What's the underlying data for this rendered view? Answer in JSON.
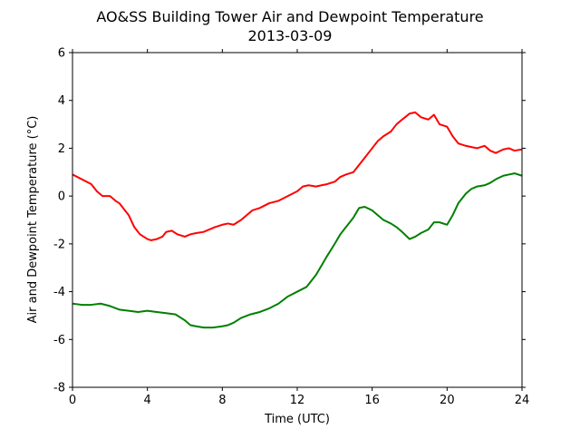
{
  "chart_data": {
    "type": "line",
    "title": "AO&SS Building Tower Air and Dewpoint Temperature",
    "subtitle": "2013-03-09",
    "xlabel": "Time (UTC)",
    "ylabel": "Air and Dewpoint Temperature (°C)",
    "xlim": [
      0,
      24
    ],
    "ylim": [
      -8,
      6
    ],
    "xticks": [
      "0",
      "4",
      "8",
      "12",
      "16",
      "20",
      "24"
    ],
    "yticks": [
      "6",
      "4",
      "2",
      "0",
      "-2",
      "-4",
      "-6",
      "-8"
    ],
    "grid": false,
    "legend": "none",
    "series": [
      {
        "color": "#ff0000",
        "x": [
          0,
          0.5,
          1,
          1.3,
          1.6,
          2,
          2.3,
          2.5,
          3,
          3.3,
          3.6,
          4,
          4.2,
          4.5,
          4.8,
          5,
          5.3,
          5.6,
          6,
          6.3,
          6.6,
          7,
          7.3,
          7.6,
          8,
          8.3,
          8.6,
          9,
          9.3,
          9.6,
          10,
          10.5,
          11,
          11.5,
          12,
          12.3,
          12.6,
          13,
          13.3,
          13.6,
          14,
          14.3,
          14.6,
          15,
          15.3,
          15.6,
          16,
          16.3,
          16.6,
          17,
          17.3,
          17.6,
          18,
          18.3,
          18.6,
          19,
          19.3,
          19.6,
          20,
          20.3,
          20.6,
          21,
          21.3,
          21.6,
          22,
          22.3,
          22.6,
          23,
          23.3,
          23.6,
          24
        ],
        "y": [
          0.9,
          0.7,
          0.5,
          0.2,
          0.0,
          0.0,
          -0.2,
          -0.3,
          -0.8,
          -1.3,
          -1.6,
          -1.8,
          -1.85,
          -1.8,
          -1.7,
          -1.5,
          -1.45,
          -1.6,
          -1.7,
          -1.6,
          -1.55,
          -1.5,
          -1.4,
          -1.3,
          -1.2,
          -1.15,
          -1.2,
          -1.0,
          -0.8,
          -0.6,
          -0.5,
          -0.3,
          -0.2,
          0.0,
          0.2,
          0.4,
          0.45,
          0.4,
          0.45,
          0.5,
          0.6,
          0.8,
          0.9,
          1.0,
          1.3,
          1.6,
          2.0,
          2.3,
          2.5,
          2.7,
          3.0,
          3.2,
          3.45,
          3.5,
          3.3,
          3.2,
          3.4,
          3.0,
          2.9,
          2.5,
          2.2,
          2.1,
          2.05,
          2.0,
          2.1,
          1.9,
          1.8,
          1.95,
          2.0,
          1.9,
          1.95
        ]
      },
      {
        "color": "#008000",
        "x": [
          0,
          0.5,
          1,
          1.5,
          2,
          2.5,
          3,
          3.5,
          4,
          4.5,
          5,
          5.5,
          6,
          6.3,
          6.6,
          7,
          7.5,
          8,
          8.3,
          8.6,
          9,
          9.5,
          10,
          10.5,
          11,
          11.5,
          12,
          12.5,
          13,
          13.3,
          13.6,
          14,
          14.3,
          14.6,
          15,
          15.3,
          15.6,
          16,
          16.3,
          16.6,
          17,
          17.3,
          17.6,
          18,
          18.3,
          18.6,
          19,
          19.3,
          19.6,
          20,
          20.3,
          20.6,
          21,
          21.3,
          21.6,
          22,
          22.3,
          22.6,
          23,
          23.3,
          23.6,
          24
        ],
        "y": [
          -4.5,
          -4.55,
          -4.55,
          -4.5,
          -4.6,
          -4.75,
          -4.8,
          -4.85,
          -4.8,
          -4.85,
          -4.9,
          -4.95,
          -5.2,
          -5.4,
          -5.45,
          -5.5,
          -5.5,
          -5.45,
          -5.4,
          -5.3,
          -5.1,
          -4.95,
          -4.85,
          -4.7,
          -4.5,
          -4.2,
          -4.0,
          -3.8,
          -3.3,
          -2.9,
          -2.5,
          -2.0,
          -1.6,
          -1.3,
          -0.9,
          -0.5,
          -0.45,
          -0.6,
          -0.8,
          -1.0,
          -1.15,
          -1.3,
          -1.5,
          -1.8,
          -1.7,
          -1.55,
          -1.4,
          -1.1,
          -1.1,
          -1.2,
          -0.8,
          -0.3,
          0.1,
          0.3,
          0.4,
          0.45,
          0.55,
          0.7,
          0.85,
          0.9,
          0.95,
          0.85
        ]
      }
    ]
  }
}
